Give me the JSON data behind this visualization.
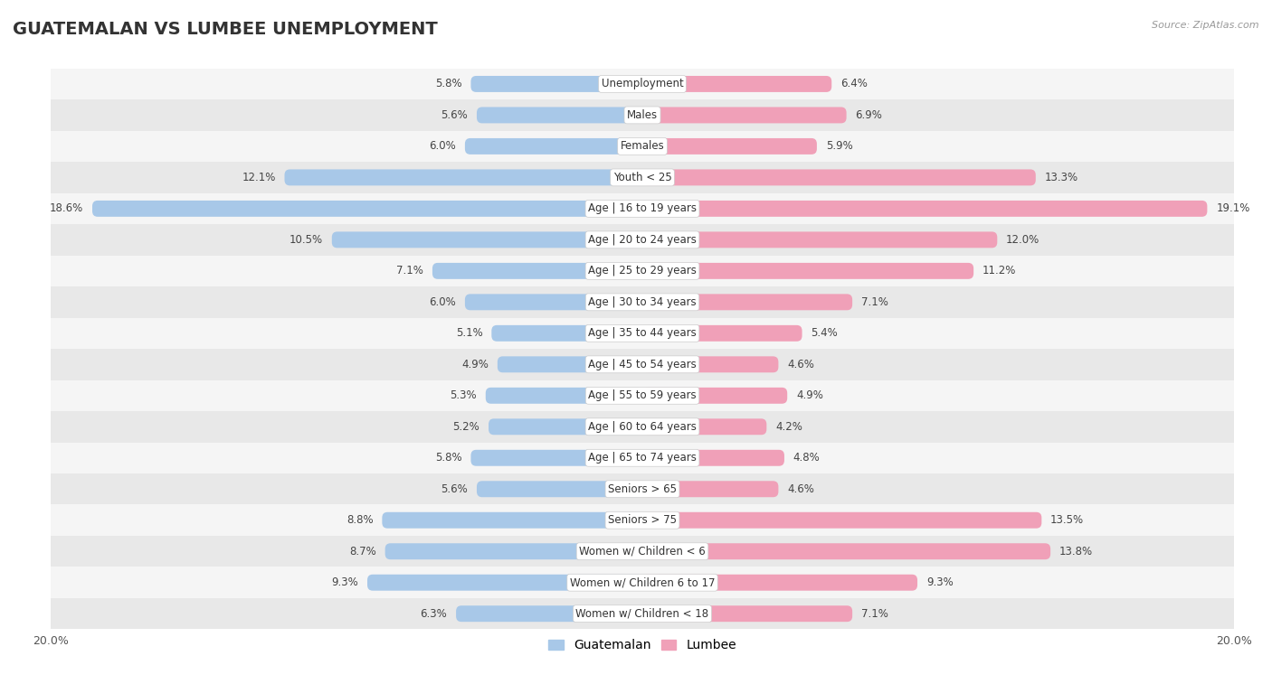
{
  "title": "GUATEMALAN VS LUMBEE UNEMPLOYMENT",
  "source": "Source: ZipAtlas.com",
  "categories": [
    "Unemployment",
    "Males",
    "Females",
    "Youth < 25",
    "Age | 16 to 19 years",
    "Age | 20 to 24 years",
    "Age | 25 to 29 years",
    "Age | 30 to 34 years",
    "Age | 35 to 44 years",
    "Age | 45 to 54 years",
    "Age | 55 to 59 years",
    "Age | 60 to 64 years",
    "Age | 65 to 74 years",
    "Seniors > 65",
    "Seniors > 75",
    "Women w/ Children < 6",
    "Women w/ Children 6 to 17",
    "Women w/ Children < 18"
  ],
  "guatemalan": [
    5.8,
    5.6,
    6.0,
    12.1,
    18.6,
    10.5,
    7.1,
    6.0,
    5.1,
    4.9,
    5.3,
    5.2,
    5.8,
    5.6,
    8.8,
    8.7,
    9.3,
    6.3
  ],
  "lumbee": [
    6.4,
    6.9,
    5.9,
    13.3,
    19.1,
    12.0,
    11.2,
    7.1,
    5.4,
    4.6,
    4.9,
    4.2,
    4.8,
    4.6,
    13.5,
    13.8,
    9.3,
    7.1
  ],
  "guatemalan_color": "#a8c8e8",
  "lumbee_color": "#f0a0b8",
  "row_bg_even": "#f5f5f5",
  "row_bg_odd": "#e8e8e8",
  "background_color": "#ffffff",
  "axis_limit": 20.0,
  "bar_height": 0.52,
  "label_fontsize": 8.5,
  "cat_fontsize": 8.5,
  "title_fontsize": 14,
  "source_fontsize": 8
}
